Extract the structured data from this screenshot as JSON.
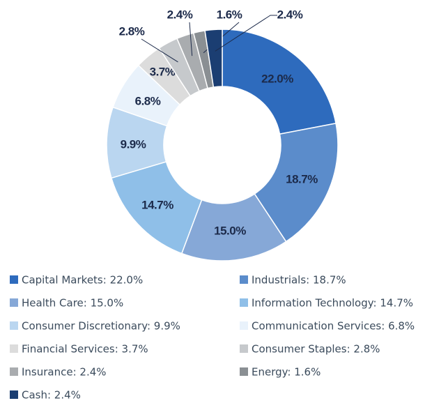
{
  "chart_data": {
    "type": "pie",
    "categories": [
      "Capital Markets",
      "Industrials",
      "Health Care",
      "Information Technology",
      "Consumer Discretionary",
      "Communication Services",
      "Financial Services",
      "Consumer Staples",
      "Insurance",
      "Energy",
      "Cash"
    ],
    "values": [
      22.0,
      18.7,
      15.0,
      14.7,
      9.9,
      6.8,
      3.7,
      2.8,
      2.4,
      1.6,
      2.4
    ],
    "value_labels": [
      "22.0%",
      "18.7%",
      "15.0%",
      "14.7%",
      "9.9%",
      "6.8%",
      "3.7%",
      "2.8%",
      "2.4%",
      "1.6%",
      "2.4%"
    ],
    "legend": [
      "Capital Markets: 22.0%",
      "Industrials: 18.7%",
      "Health Care: 15.0%",
      "Information Technology: 14.7%",
      "Consumer Discretionary: 9.9%",
      "Communication Services: 6.8%",
      "Financial Services: 3.7%",
      "Consumer Staples: 2.8%",
      "Insurance: 2.4%",
      "Energy: 1.6%",
      "Cash: 2.4%"
    ],
    "colors": [
      "#2e6bbd",
      "#5b8ccb",
      "#86a8d7",
      "#8fbfe8",
      "#bad6f0",
      "#e9f2fb",
      "#dcdcdc",
      "#c6c9cc",
      "#a9acaf",
      "#8a8f93",
      "#1b3e72"
    ],
    "donut": true
  }
}
